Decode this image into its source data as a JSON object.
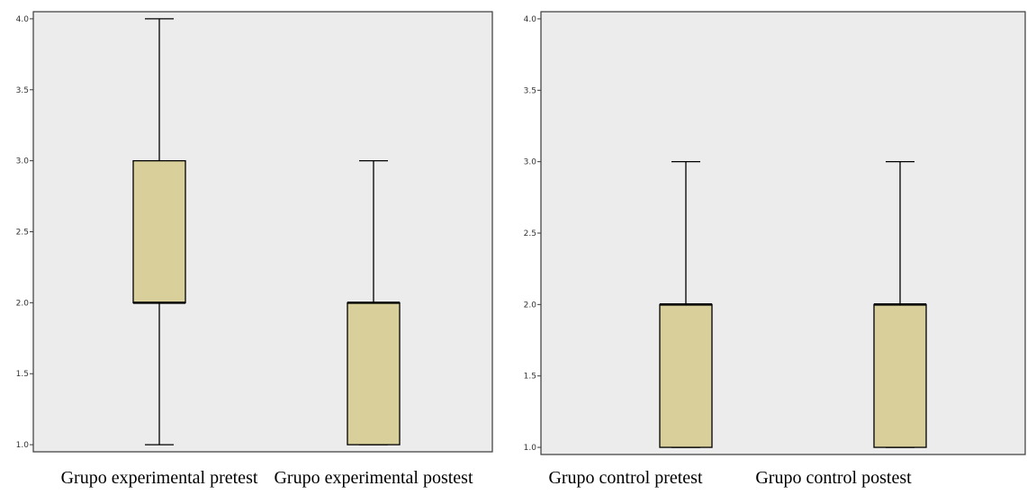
{
  "chart_data": [
    {
      "type": "boxplot",
      "title": "",
      "xlabel": "",
      "ylabel": "",
      "ylim": [
        0.95,
        4.05
      ],
      "yticks": [
        1.0,
        1.5,
        2.0,
        2.5,
        3.0,
        3.5,
        4.0
      ],
      "ytick_labels": [
        "1.0",
        "1.5",
        "2.0",
        "2.5",
        "3.0",
        "3.5",
        "4.0"
      ],
      "grid": false,
      "box_color": "#d8cf9a",
      "background_color": "#ececec",
      "categories": [
        "Grupo experimental pretest",
        "Grupo experimental postest"
      ],
      "boxes": [
        {
          "min": 1.0,
          "q1": 2.0,
          "median": 2.0,
          "q3": 3.0,
          "max": 4.0
        },
        {
          "min": 1.0,
          "q1": 1.0,
          "median": 2.0,
          "q3": 2.0,
          "max": 3.0
        }
      ]
    },
    {
      "type": "boxplot",
      "title": "",
      "xlabel": "",
      "ylabel": "",
      "ylim": [
        0.95,
        4.05
      ],
      "yticks": [
        1.0,
        1.5,
        2.0,
        2.5,
        3.0,
        3.5,
        4.0
      ],
      "ytick_labels": [
        "1.0",
        "1.5",
        "2.0",
        "2.5",
        "3.0",
        "3.5",
        "4.0"
      ],
      "grid": false,
      "box_color": "#d8cf9a",
      "background_color": "#ececec",
      "categories": [
        "Grupo control pretest",
        "Grupo control postest"
      ],
      "boxes": [
        {
          "min": 1.0,
          "q1": 1.0,
          "median": 2.0,
          "q3": 2.0,
          "max": 3.0
        },
        {
          "min": 1.0,
          "q1": 1.0,
          "median": 2.0,
          "q3": 2.0,
          "max": 3.0
        }
      ]
    }
  ]
}
